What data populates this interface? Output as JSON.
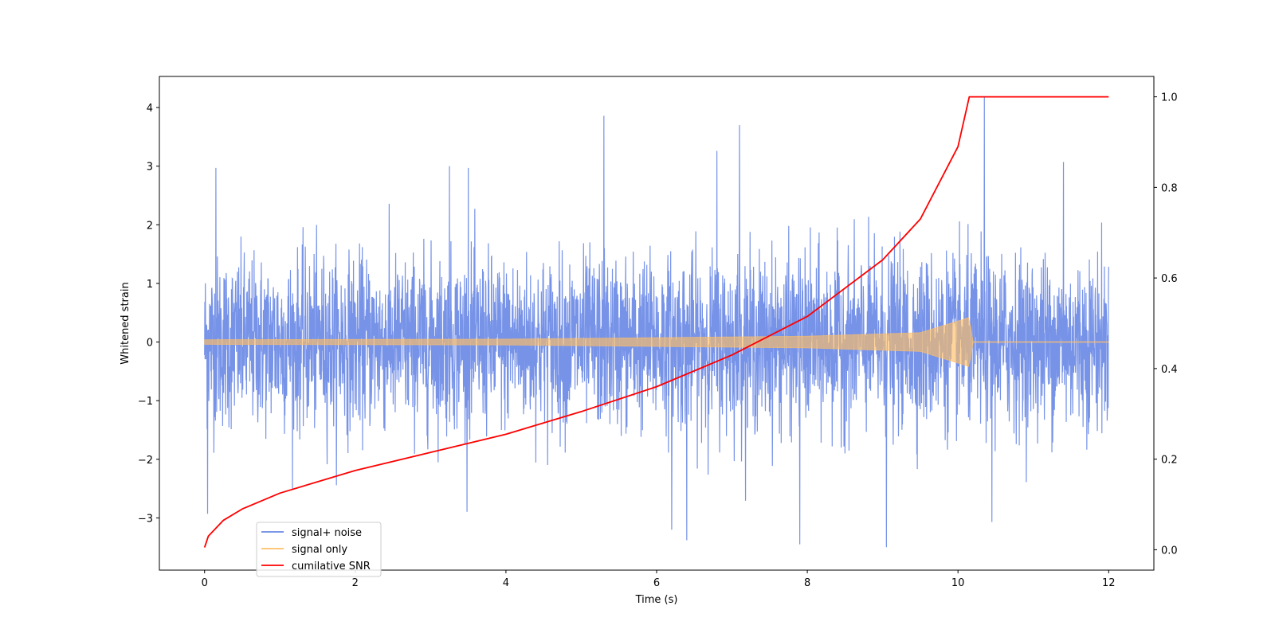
{
  "chart_data": {
    "type": "line",
    "title": "",
    "xlabel": "Time (s)",
    "ylabel": "Whitened strain",
    "y2label": "",
    "xlim": [
      -0.6,
      12.6
    ],
    "ylim": [
      -3.89,
      4.53
    ],
    "y2lim": [
      -0.045,
      1.045
    ],
    "xticks": [
      0,
      2,
      4,
      6,
      8,
      10,
      12
    ],
    "xtick_labels": [
      "0",
      "2",
      "4",
      "6",
      "8",
      "10",
      "12"
    ],
    "yticks": [
      -3,
      -2,
      -1,
      0,
      1,
      2,
      3,
      4
    ],
    "ytick_labels": [
      "−3",
      "−2",
      "−1",
      "0",
      "1",
      "2",
      "3",
      "4"
    ],
    "y2ticks": [
      0.0,
      0.2,
      0.4,
      0.6,
      0.8,
      1.0
    ],
    "y2tick_labels": [
      "0.0",
      "0.2",
      "0.4",
      "0.6",
      "0.8",
      "1.0"
    ],
    "grid": false,
    "legend_position": "lower-left",
    "series": [
      {
        "name": "signal+ noise",
        "axis": "left",
        "color": "#6b8ae6",
        "description_values": {
          "x_range": [
            0,
            12
          ],
          "typical_envelope": [
            -2.3,
            2.3
          ],
          "notable_peaks": [
            {
              "x": 0.15,
              "y": 2.97
            },
            {
              "x": 5.3,
              "y": 3.86
            },
            {
              "x": 7.1,
              "y": 3.7
            },
            {
              "x": 6.8,
              "y": 3.26
            },
            {
              "x": 10.35,
              "y": 4.17
            },
            {
              "x": 11.4,
              "y": 3.07
            },
            {
              "x": 3.25,
              "y": 3.0
            },
            {
              "x": 3.5,
              "y": 2.97
            }
          ],
          "notable_troughs": [
            {
              "x": 0.04,
              "y": -2.93
            },
            {
              "x": 6.4,
              "y": -3.38
            },
            {
              "x": 7.9,
              "y": -3.45
            },
            {
              "x": 9.05,
              "y": -3.5
            },
            {
              "x": 10.45,
              "y": -3.07
            },
            {
              "x": 6.2,
              "y": -3.2
            }
          ]
        }
      },
      {
        "name": "signal only",
        "axis": "left",
        "color": "#ffbf66",
        "description_values": {
          "type": "chirp",
          "x_range": [
            0,
            12
          ],
          "amplitude_at": [
            {
              "x": 0,
              "amp": 0.04
            },
            {
              "x": 4,
              "amp": 0.05
            },
            {
              "x": 8,
              "amp": 0.1
            },
            {
              "x": 9.5,
              "amp": 0.16
            },
            {
              "x": 10.15,
              "amp": 0.42
            },
            {
              "x": 10.2,
              "amp": 0.0
            },
            {
              "x": 12,
              "amp": 0.0
            }
          ]
        }
      },
      {
        "name": "cumilative SNR",
        "axis": "right",
        "color": "#ff0000",
        "x": [
          0,
          0.05,
          0.25,
          0.5,
          1,
          2,
          3,
          4,
          5,
          6,
          7,
          8,
          9,
          9.5,
          10,
          10.15,
          12
        ],
        "values": [
          0.005,
          0.03,
          0.065,
          0.09,
          0.125,
          0.175,
          0.215,
          0.255,
          0.305,
          0.36,
          0.43,
          0.515,
          0.64,
          0.73,
          0.89,
          1.0,
          1.0
        ]
      }
    ]
  }
}
